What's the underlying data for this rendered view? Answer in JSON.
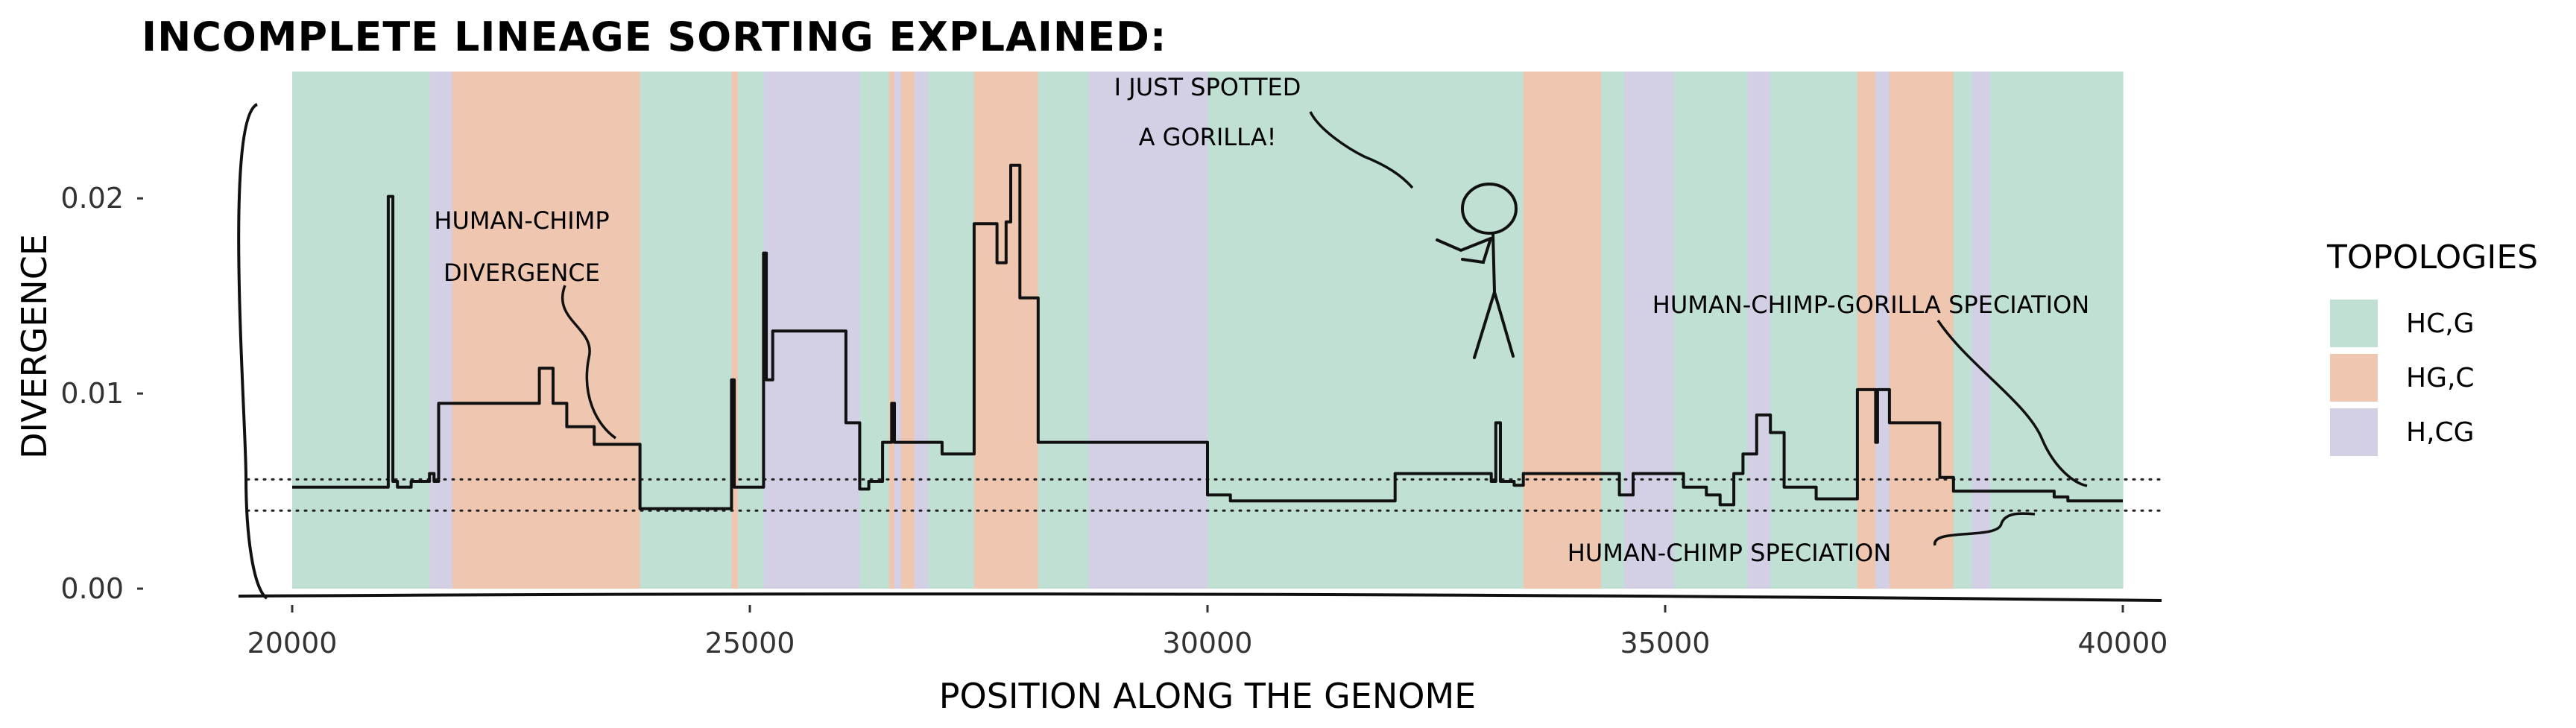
{
  "chart_data": {
    "type": "area",
    "title": "INCOMPLETE LINEAGE SORTING EXPLAINED:",
    "xlabel": "POSITION ALONG THE GENOME",
    "ylabel": "DIVERGENCE",
    "xlim": [
      19500,
      40400
    ],
    "ylim": [
      0,
      0.0265
    ],
    "x_ticks": [
      20000,
      25000,
      30000,
      35000,
      40000
    ],
    "x_tick_labels": [
      "20000",
      "25000",
      "30000",
      "35000",
      "40000"
    ],
    "y_ticks": [
      0,
      0.01,
      0.02
    ],
    "y_tick_labels": [
      "0.00",
      "0.01",
      "0.02"
    ],
    "legend": {
      "title": "TOPOLOGIES",
      "placement": "right",
      "entries": [
        {
          "key": "HC_G",
          "label": "HC,G",
          "color": "#bfe0d3"
        },
        {
          "key": "HG_C",
          "label": "HG,C",
          "color": "#efc7b1"
        },
        {
          "key": "H_CG",
          "label": "H,CG",
          "color": "#d3d0e6"
        }
      ]
    },
    "topology_segments": [
      {
        "start": 20000,
        "end": 21050,
        "topology": "HC_G"
      },
      {
        "start": 21050,
        "end": 21500,
        "topology": "HC_G"
      },
      {
        "start": 21500,
        "end": 21750,
        "topology": "H_CG"
      },
      {
        "start": 21750,
        "end": 23800,
        "topology": "HG_C"
      },
      {
        "start": 23800,
        "end": 24800,
        "topology": "HC_G"
      },
      {
        "start": 24800,
        "end": 24870,
        "topology": "HG_C"
      },
      {
        "start": 24870,
        "end": 25150,
        "topology": "HC_G"
      },
      {
        "start": 25150,
        "end": 26200,
        "topology": "H_CG"
      },
      {
        "start": 26200,
        "end": 26520,
        "topology": "HC_G"
      },
      {
        "start": 26520,
        "end": 26580,
        "topology": "HG_C"
      },
      {
        "start": 26580,
        "end": 26650,
        "topology": "H_CG"
      },
      {
        "start": 26650,
        "end": 26800,
        "topology": "HG_C"
      },
      {
        "start": 26800,
        "end": 26950,
        "topology": "H_CG"
      },
      {
        "start": 26950,
        "end": 27450,
        "topology": "HC_G"
      },
      {
        "start": 27450,
        "end": 28150,
        "topology": "HG_C"
      },
      {
        "start": 28150,
        "end": 28700,
        "topology": "HC_G"
      },
      {
        "start": 28700,
        "end": 30000,
        "topology": "H_CG"
      },
      {
        "start": 30000,
        "end": 33450,
        "topology": "HC_G"
      },
      {
        "start": 33450,
        "end": 34300,
        "topology": "HG_C"
      },
      {
        "start": 34300,
        "end": 34550,
        "topology": "HC_G"
      },
      {
        "start": 34550,
        "end": 35100,
        "topology": "H_CG"
      },
      {
        "start": 35100,
        "end": 35900,
        "topology": "HC_G"
      },
      {
        "start": 35900,
        "end": 36150,
        "topology": "H_CG"
      },
      {
        "start": 36150,
        "end": 37100,
        "topology": "HC_G"
      },
      {
        "start": 37100,
        "end": 37300,
        "topology": "HG_C"
      },
      {
        "start": 37300,
        "end": 37450,
        "topology": "H_CG"
      },
      {
        "start": 37450,
        "end": 38150,
        "topology": "HG_C"
      },
      {
        "start": 38150,
        "end": 38350,
        "topology": "HC_G"
      },
      {
        "start": 38350,
        "end": 38550,
        "topology": "H_CG"
      },
      {
        "start": 38550,
        "end": 40000,
        "topology": "HC_G"
      }
    ],
    "series": [
      {
        "x": [
          20000,
          21050,
          21050,
          21100,
          21100,
          21150,
          21150,
          21300,
          21300,
          21500,
          21500,
          21550,
          21550,
          21600,
          21600,
          21900,
          21900,
          22700,
          22700,
          22850,
          22850,
          23000,
          23000,
          23300,
          23300,
          23800,
          23800,
          24800,
          24800,
          24830,
          24830,
          24870,
          24870,
          25150,
          25150,
          25180,
          25180,
          25250,
          25250,
          25350,
          25350,
          26050,
          26050,
          26200,
          26200,
          26300,
          26300,
          26450,
          26450,
          26550,
          26550,
          26580,
          26580,
          26650,
          26650,
          26800,
          26800,
          27100,
          27100,
          27450,
          27450,
          27700,
          27700,
          27800,
          27800,
          27850,
          27850,
          27950,
          27950,
          28000,
          28000,
          28150,
          28150,
          30000,
          30000,
          30250,
          30250,
          32050,
          32050,
          33100,
          33100,
          33150,
          33150,
          33200,
          33200,
          33350,
          33350,
          33450,
          33450,
          34300,
          34300,
          34500,
          34500,
          34650,
          34650,
          35200,
          35200,
          35450,
          35450,
          35600,
          35600,
          35750,
          35750,
          35850,
          35850,
          36000,
          36000,
          36150,
          36150,
          36300,
          36300,
          36650,
          36650,
          37100,
          37100,
          37300,
          37300,
          37320,
          37320,
          37450,
          37450,
          37600,
          37600,
          38000,
          38000,
          38150,
          38150,
          38550,
          38550,
          39250,
          39250,
          39400,
          39400,
          40000
        ],
        "y": [
          0.0052,
          0.0052,
          0.0201,
          0.0201,
          0.0055,
          0.0055,
          0.0052,
          0.0052,
          0.0055,
          0.0055,
          0.0059,
          0.0059,
          0.0055,
          0.0055,
          0.0095,
          0.0095,
          0.0095,
          0.0095,
          0.0113,
          0.0113,
          0.0095,
          0.0095,
          0.0083,
          0.0083,
          0.0074,
          0.0074,
          0.0041,
          0.0041,
          0.0107,
          0.0107,
          0.0052,
          0.0052,
          0.0052,
          0.0052,
          0.0172,
          0.0172,
          0.0107,
          0.0107,
          0.0132,
          0.0132,
          0.0132,
          0.0132,
          0.0085,
          0.0085,
          0.0051,
          0.0051,
          0.0055,
          0.0055,
          0.0075,
          0.0075,
          0.0095,
          0.0095,
          0.0075,
          0.0075,
          0.0075,
          0.0075,
          0.0075,
          0.0075,
          0.0069,
          0.0069,
          0.0187,
          0.0187,
          0.0167,
          0.0167,
          0.0188,
          0.0188,
          0.0217,
          0.0217,
          0.0149,
          0.0149,
          0.0149,
          0.0149,
          0.0075,
          0.0075,
          0.0048,
          0.0048,
          0.0045,
          0.0045,
          0.0059,
          0.0059,
          0.0055,
          0.0055,
          0.0085,
          0.0085,
          0.0055,
          0.0055,
          0.0053,
          0.0053,
          0.0059,
          0.0059,
          0.0059,
          0.0059,
          0.0048,
          0.0048,
          0.0059,
          0.0059,
          0.0052,
          0.0052,
          0.0048,
          0.0048,
          0.0043,
          0.0043,
          0.0059,
          0.0059,
          0.0069,
          0.0069,
          0.0089,
          0.0089,
          0.008,
          0.008,
          0.0052,
          0.0052,
          0.0046,
          0.0046,
          0.0102,
          0.0102,
          0.0075,
          0.0075,
          0.0102,
          0.0102,
          0.0085,
          0.0085,
          0.0085,
          0.0085,
          0.0057,
          0.0057,
          0.005,
          0.005,
          0.005,
          0.005,
          0.0047,
          0.0047,
          0.0045,
          0.0045
        ]
      }
    ],
    "reference_lines": [
      {
        "y": 0.0056,
        "style": "dotted",
        "label": "HUMAN-CHIMP-GORILLA SPECIATION"
      },
      {
        "y": 0.004,
        "style": "dotted",
        "label": "HUMAN-CHIMP SPECIATION"
      }
    ],
    "annotations": [
      {
        "text_lines": [
          "HUMAN-CHIMP",
          "DIVERGENCE"
        ]
      },
      {
        "text_lines": [
          "HUMAN-CHIMP-GORILLA SPECIATION"
        ]
      },
      {
        "text_lines": [
          "HUMAN-CHIMP SPECIATION"
        ]
      },
      {
        "text_lines": [
          "I JUST SPOTTED",
          "A GORILLA!"
        ]
      }
    ]
  }
}
